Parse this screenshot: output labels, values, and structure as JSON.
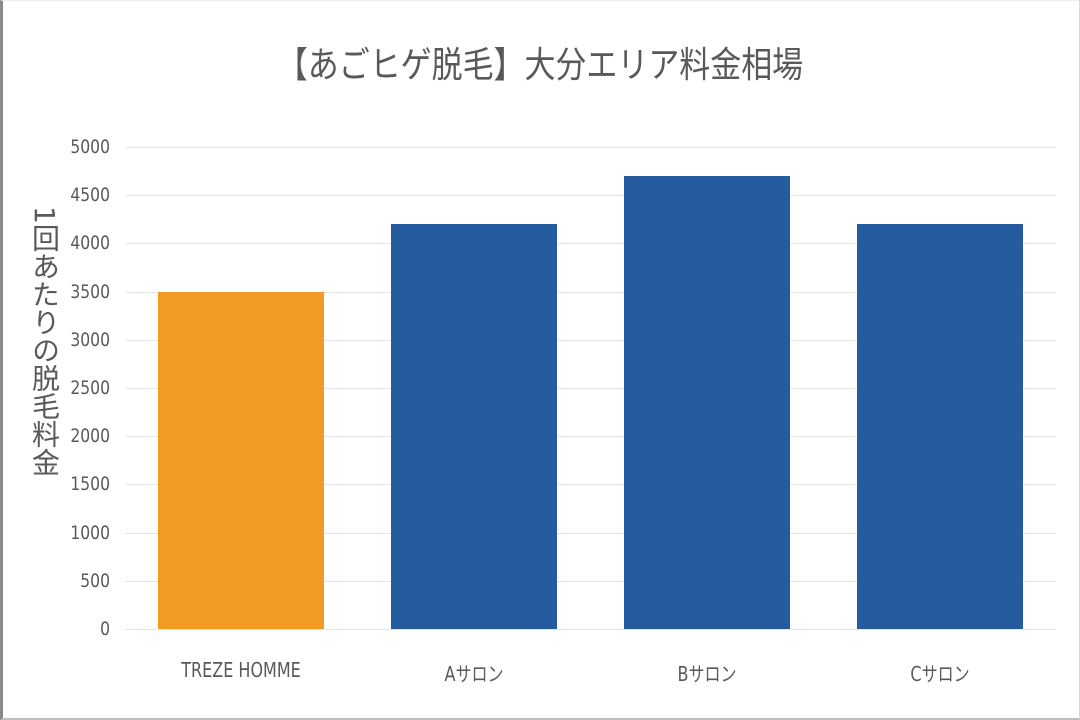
{
  "chart_data": {
    "type": "bar",
    "title": "【あごヒゲ脱毛】大分エリア料金相場",
    "xlabel": "",
    "ylabel": "1回あたりの脱毛料金",
    "categories": [
      "TREZE HOMME",
      "Aサロン",
      "Bサロン",
      "Cサロン"
    ],
    "values": [
      3500,
      4200,
      4700,
      4200
    ],
    "colors": [
      "#f39a25",
      "#275b9f",
      "#275b9f",
      "#275b9f"
    ],
    "ylim": [
      0,
      5000
    ],
    "yticks": [
      "0",
      "500",
      "1000",
      "1500",
      "2000",
      "2500",
      "3000",
      "3500",
      "4000",
      "4500",
      "5000"
    ],
    "grid": true,
    "legend": "none"
  }
}
